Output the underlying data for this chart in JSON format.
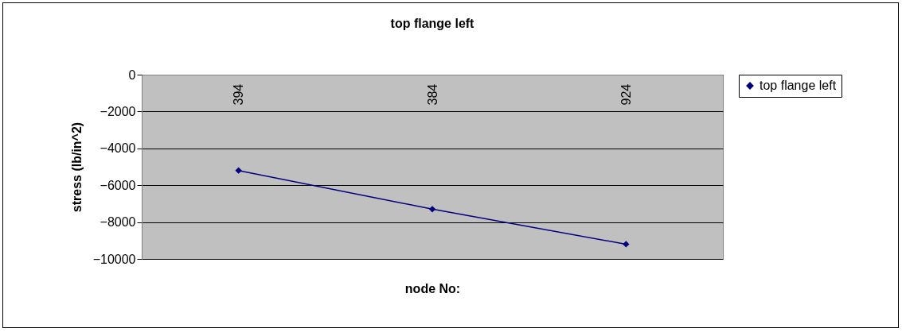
{
  "chart_data": {
    "type": "line",
    "title": "top flange left",
    "xlabel": "node No:",
    "ylabel": "stress (lb/in^2)",
    "categories": [
      "394",
      "384",
      "924"
    ],
    "series": [
      {
        "name": "top flange left",
        "color": "#000080",
        "values": [
          -5200,
          -7300,
          -9200
        ]
      }
    ],
    "ylim": [
      -10000,
      0
    ],
    "yticks": [
      -10000,
      -8000,
      -6000,
      -4000,
      -2000,
      0
    ],
    "grid": "y",
    "legend": "right",
    "marker": "diamond"
  }
}
